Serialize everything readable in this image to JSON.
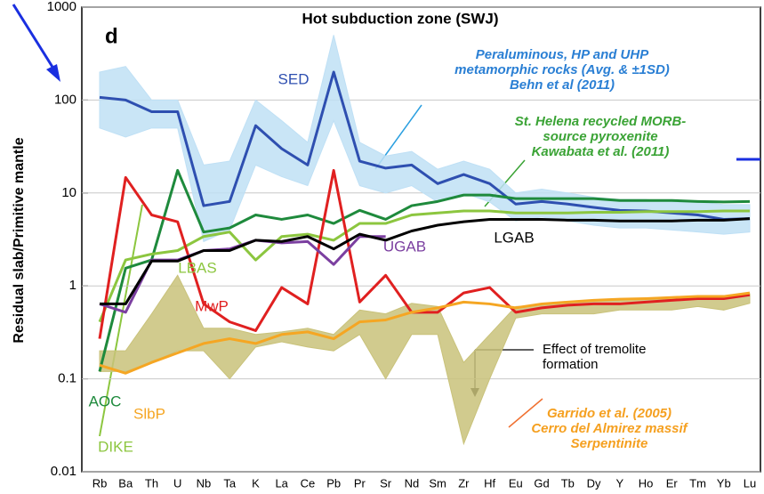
{
  "chart_data": {
    "type": "line",
    "title": "Hot subduction zone (SWJ)",
    "panel_label": "d",
    "ylabel": "Residual slab/Primitive mantle",
    "log_y": true,
    "ylim": [
      0.01,
      1000
    ],
    "yticks": [
      0.01,
      0.1,
      1,
      10,
      100,
      1000
    ],
    "grid": true,
    "categories": [
      "Rb",
      "Ba",
      "Th",
      "U",
      "Nb",
      "Ta",
      "K",
      "La",
      "Ce",
      "Pb",
      "Pr",
      "Sr",
      "Nd",
      "Sm",
      "Zr",
      "Hf",
      "Eu",
      "Gd",
      "Tb",
      "Dy",
      "Y",
      "Ho",
      "Er",
      "Tm",
      "Yb",
      "Lu"
    ],
    "bands": [
      {
        "color": "#bfe0f5",
        "upper": [
          200,
          230,
          100,
          100,
          20,
          22,
          100,
          60,
          35,
          500,
          35,
          25,
          28,
          18,
          22,
          18,
          10,
          11,
          10,
          9,
          8.5,
          8.5,
          8,
          8,
          7.5,
          7.5
        ],
        "lower": [
          50,
          40,
          50,
          50,
          3,
          4,
          20,
          15,
          12,
          60,
          12,
          10,
          12,
          8,
          10,
          8,
          5,
          5.5,
          5,
          4.5,
          4.2,
          4.2,
          4,
          3.8,
          3.6,
          3.8
        ]
      },
      {
        "color": "#c9c27a",
        "upper": [
          0.2,
          0.2,
          0.5,
          1.3,
          0.35,
          0.35,
          0.3,
          0.32,
          0.35,
          0.3,
          0.55,
          0.5,
          0.65,
          0.6,
          0.15,
          0.3,
          0.6,
          0.62,
          0.65,
          0.7,
          0.7,
          0.72,
          0.72,
          0.75,
          0.78,
          0.82
        ],
        "lower": [
          0.12,
          0.12,
          0.15,
          0.2,
          0.2,
          0.1,
          0.22,
          0.25,
          0.22,
          0.2,
          0.3,
          0.1,
          0.3,
          0.3,
          0.02,
          0.1,
          0.45,
          0.5,
          0.5,
          0.5,
          0.55,
          0.55,
          0.55,
          0.6,
          0.55,
          0.65
        ]
      }
    ],
    "series": [
      {
        "name": "SED",
        "color": "#2e4fb0",
        "values": [
          107,
          100,
          75,
          75,
          7.3,
          8.1,
          53,
          30,
          20,
          200,
          22,
          18.5,
          20,
          12.6,
          15.8,
          12.6,
          7.6,
          8.1,
          7.6,
          7,
          6.5,
          6.4,
          6.1,
          5.8,
          5.2,
          5.3
        ]
      },
      {
        "name": "AOC",
        "color": "#1e8a3c",
        "values": [
          0.12,
          1.55,
          1.9,
          17.5,
          3.8,
          4.2,
          5.8,
          5.2,
          5.8,
          4.7,
          6.5,
          5.2,
          7.3,
          8.1,
          9.5,
          9.5,
          8.7,
          8.7,
          8.7,
          8.7,
          8.3,
          8.3,
          8.3,
          8.1,
          8,
          8.1
        ]
      },
      {
        "name": "LBAS",
        "color": "#8cc63f",
        "values": [
          0.41,
          1.9,
          2.2,
          2.4,
          3.4,
          3.8,
          1.9,
          3.4,
          3.6,
          3.1,
          4.7,
          4.7,
          5.8,
          6.1,
          6.4,
          6.4,
          6.1,
          6.1,
          6.1,
          6.2,
          6.2,
          6.3,
          6.3,
          6.3,
          6.4,
          6.4
        ]
      },
      {
        "name": "MwP",
        "color": "#e02020",
        "values": [
          0.27,
          14.7,
          5.8,
          4.9,
          0.64,
          0.41,
          0.33,
          0.96,
          0.64,
          17.5,
          0.67,
          1.3,
          0.52,
          0.52,
          0.84,
          0.96,
          0.52,
          0.58,
          0.62,
          0.64,
          0.64,
          0.67,
          0.7,
          0.73,
          0.73,
          0.8
        ]
      },
      {
        "name": "SlbP",
        "color": "#f5a623",
        "values": [
          0.14,
          0.115,
          0.15,
          0.19,
          0.24,
          0.27,
          0.24,
          0.3,
          0.32,
          0.27,
          0.41,
          0.43,
          0.52,
          0.58,
          0.67,
          0.64,
          0.58,
          0.64,
          0.67,
          0.7,
          0.72,
          0.73,
          0.75,
          0.77,
          0.77,
          0.84
        ]
      },
      {
        "name": "UGAB",
        "color": "#7b3fa0",
        "values": [
          0.64,
          0.52,
          1.9,
          1.9,
          2.4,
          2.5,
          3.1,
          2.9,
          3,
          1.7,
          3.4,
          3.4,
          null,
          null,
          null,
          null,
          null,
          null,
          null,
          null,
          null,
          null,
          null,
          null,
          null,
          null
        ]
      },
      {
        "name": "LGAB",
        "color": "#000000",
        "values": [
          0.64,
          0.64,
          1.85,
          1.85,
          2.4,
          2.4,
          3.1,
          3,
          3.4,
          2.5,
          3.6,
          3.1,
          3.9,
          4.5,
          4.9,
          5.2,
          5.2,
          5.2,
          5.1,
          5.1,
          5,
          5,
          5,
          5.1,
          5.1,
          5.3
        ]
      }
    ],
    "annotations": [
      {
        "lines": [
          "Peraluminous, HP and UHP",
          "metamorphic rocks (Avg. & ±1SD)",
          "Behn et al (2011)"
        ],
        "color": "#2a7fd4"
      },
      {
        "lines": [
          "St. Helena recycled MORB-",
          "source pyroxenite",
          "Kawabata et al. (2011)"
        ],
        "color": "#3aa335"
      },
      {
        "lines": [
          "Effect of tremolite",
          "formation"
        ],
        "color": "#000000"
      },
      {
        "lines": [
          "Garrido et al. (2005)",
          "Cerro del Almirez massif",
          "Serpentinite"
        ],
        "color": "#f5a020"
      },
      {
        "lines": [
          "DIKE"
        ],
        "color": "#8cc63f"
      }
    ]
  }
}
